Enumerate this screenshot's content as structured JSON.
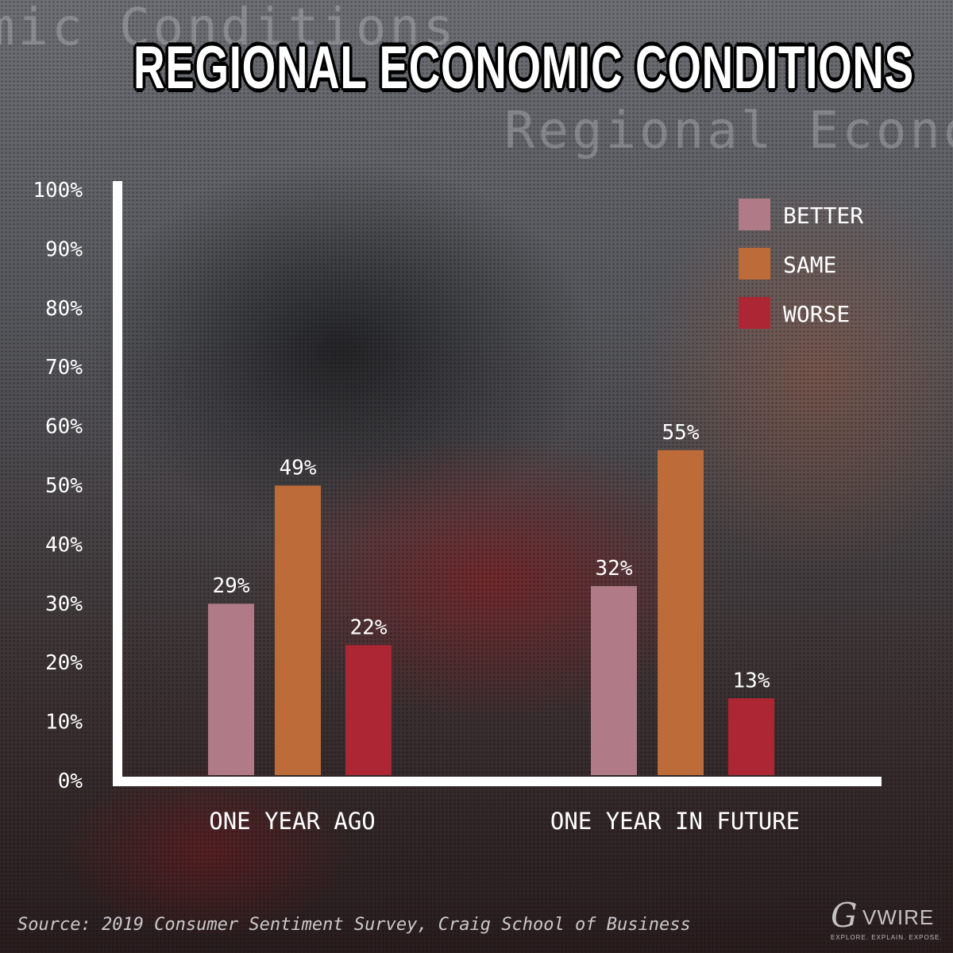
{
  "title": "REGIONAL ECONOMIC CONDITIONS",
  "background_text": [
    "mic Conditions",
    "Regional Econo"
  ],
  "source": "Source: 2019 Consumer Sentiment Survey, Craig School of Business",
  "logo": {
    "mark": "G",
    "wordmark": "VWIRE",
    "tagline": "EXPLORE. EXPLAIN. EXPOSE."
  },
  "chart_data": {
    "type": "bar",
    "title": "REGIONAL ECONOMIC CONDITIONS",
    "categories": [
      "ONE YEAR AGO",
      "ONE YEAR IN FUTURE"
    ],
    "series": [
      {
        "name": "BETTER",
        "values": [
          29,
          32
        ],
        "labels": [
          "29%",
          "32%"
        ],
        "color": "#b07b86"
      },
      {
        "name": "SAME",
        "values": [
          49,
          55
        ],
        "labels": [
          "49%",
          "55%"
        ],
        "color": "#bd6b39"
      },
      {
        "name": "WORSE",
        "values": [
          22,
          13
        ],
        "labels": [
          "22%",
          "13%"
        ],
        "color": "#ad2633"
      }
    ],
    "y_ticks": [
      "0%",
      "10%",
      "20%",
      "30%",
      "40%",
      "50%",
      "60%",
      "70%",
      "80%",
      "90%",
      "100%"
    ],
    "ylim": [
      0,
      100
    ],
    "xlabel": "",
    "ylabel": "",
    "grid": false,
    "legend_position": "top-right",
    "axis_color": "#ffffff"
  }
}
